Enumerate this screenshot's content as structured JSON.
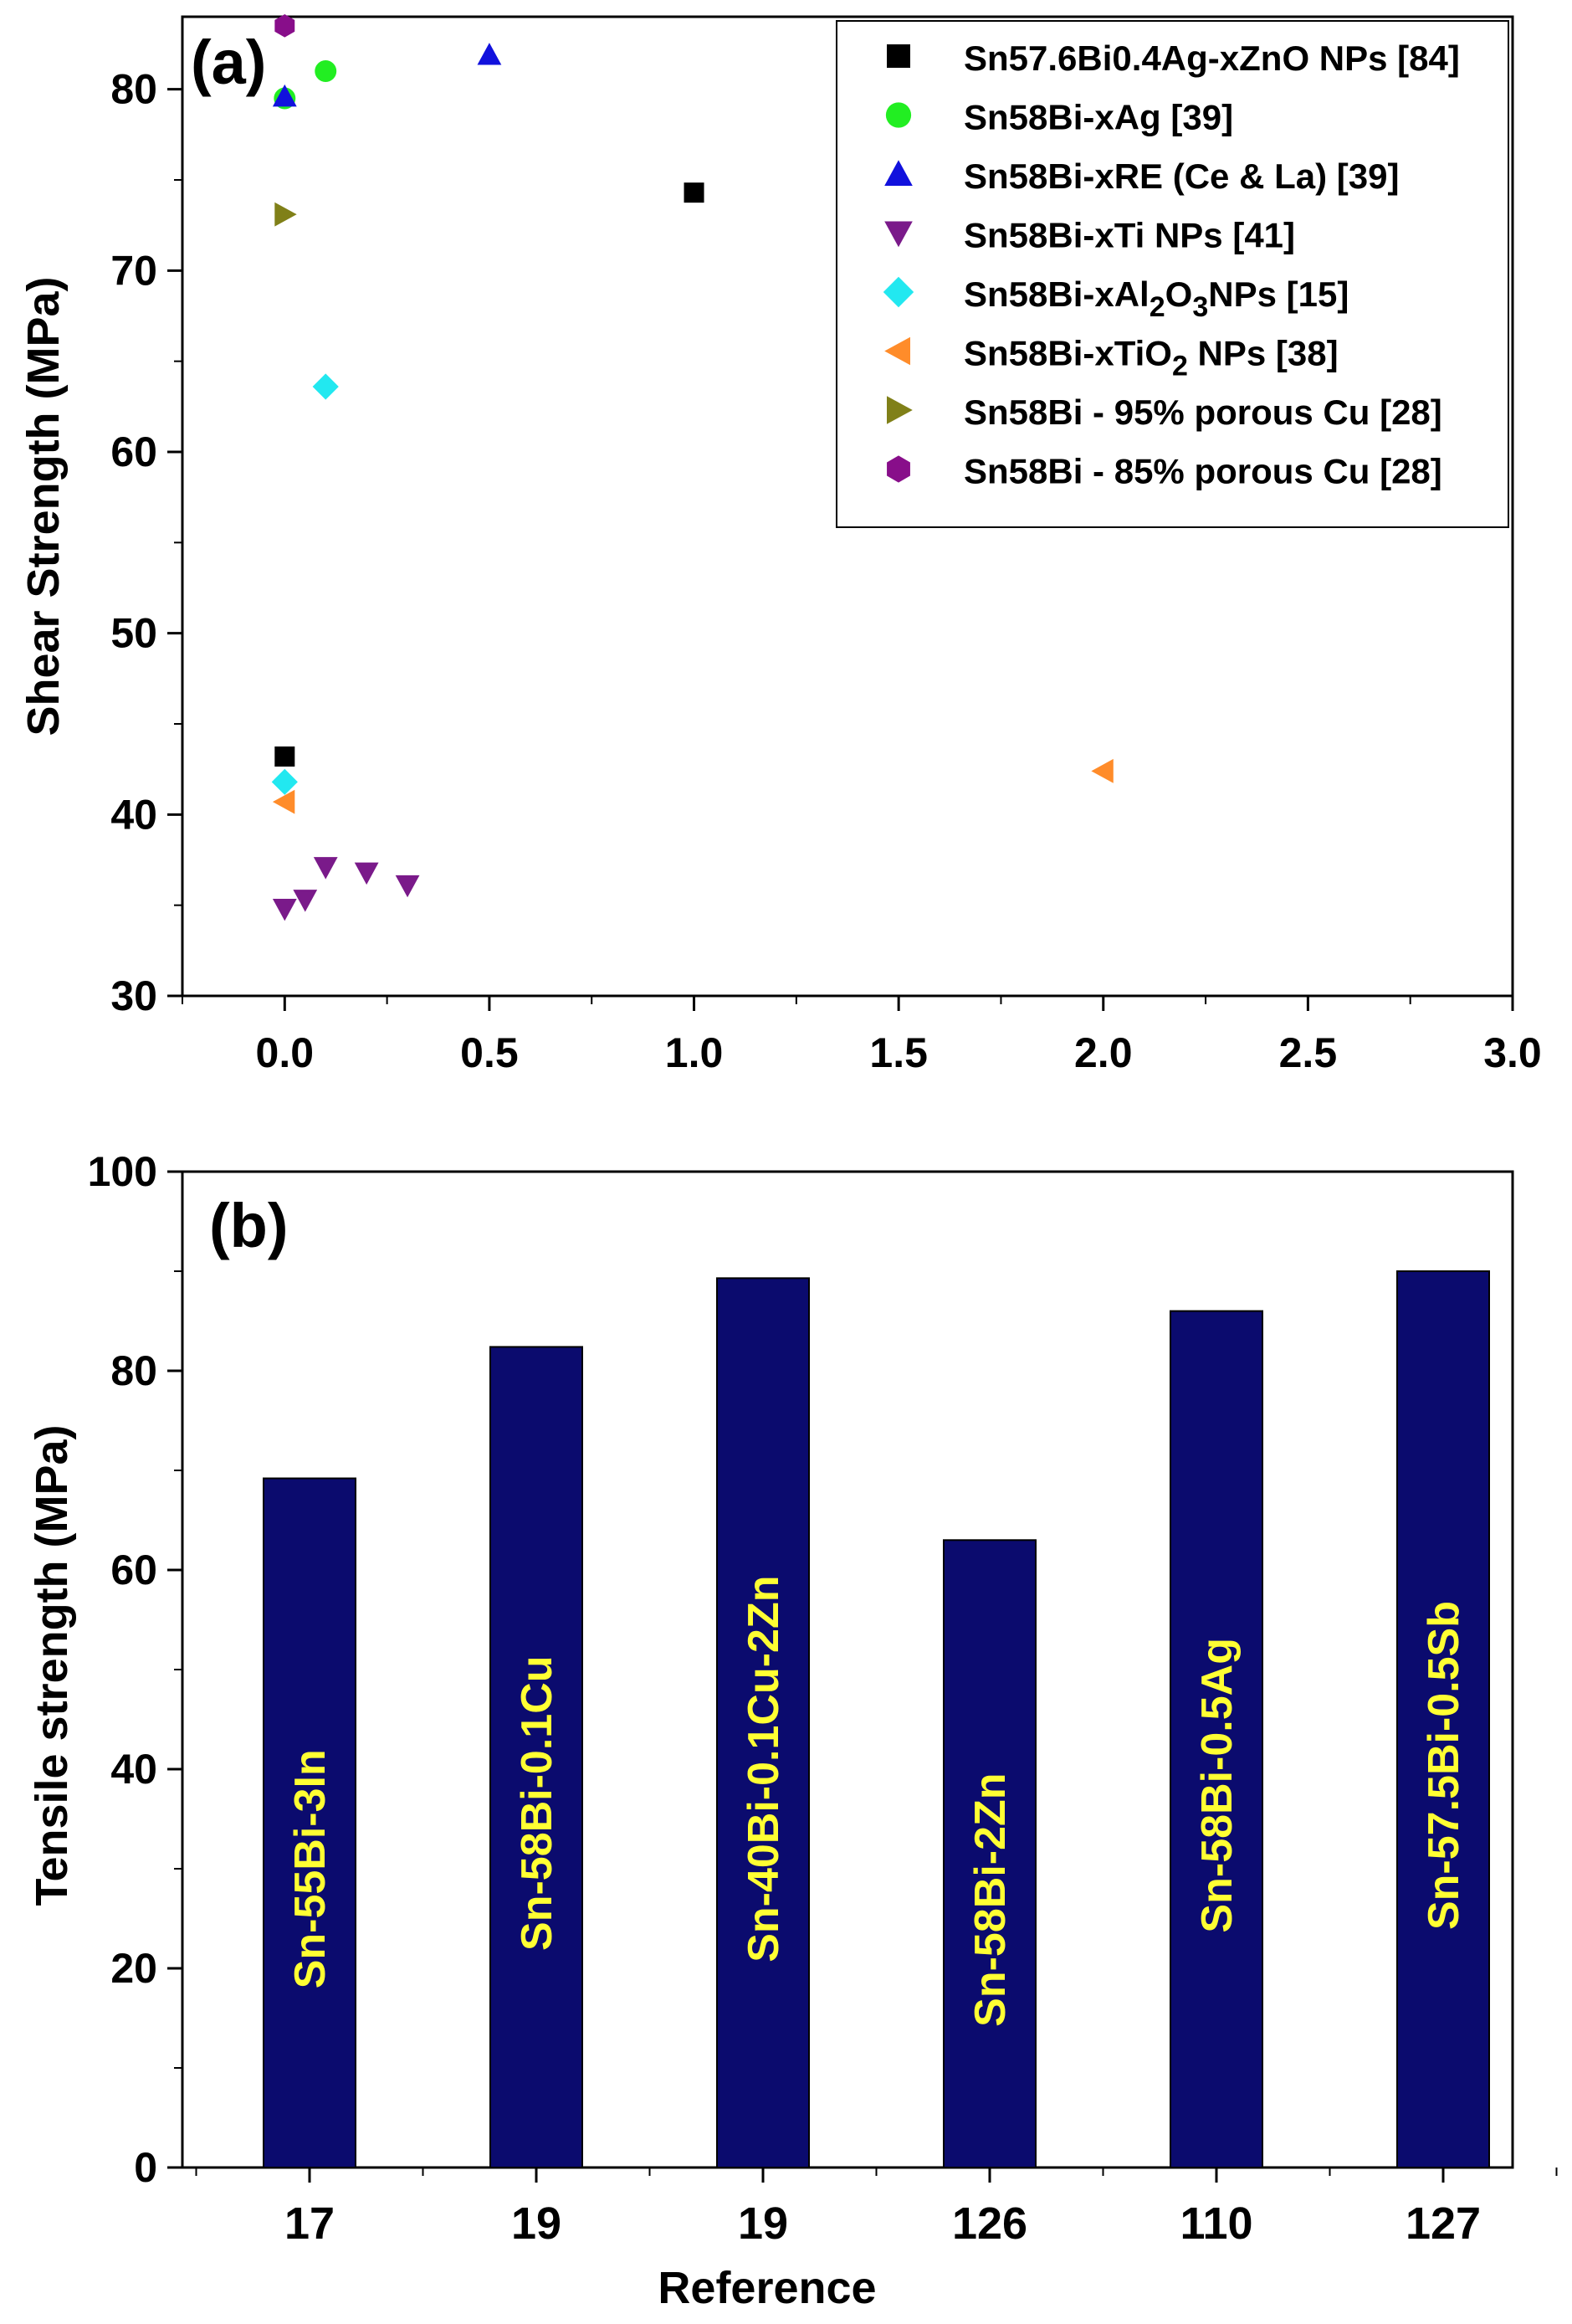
{
  "chart_data": [
    {
      "panel": "(a)",
      "type": "scatter",
      "xlabel": "",
      "ylabel": "Shear Strength (MPa)",
      "xlim": [
        -0.25,
        3.0
      ],
      "ylim": [
        30,
        84
      ],
      "xticks": [
        "0.0",
        "0.5",
        "1.0",
        "1.5",
        "2.0",
        "2.5",
        "3.0"
      ],
      "yticks": [
        "30",
        "40",
        "50",
        "60",
        "70",
        "80"
      ],
      "legend_position": "top-right",
      "series": [
        {
          "name": "Sn57.6Bi0.4Ag-xZnO NPs [84]",
          "marker": "square",
          "color": "#000000",
          "points": [
            [
              0,
              43.2
            ],
            [
              1.0,
              74.3
            ]
          ]
        },
        {
          "name": "Sn58Bi-xAg [39]",
          "marker": "circle",
          "color": "#22ee22",
          "points": [
            [
              0.1,
              81.0
            ],
            [
              0,
              79.5
            ]
          ]
        },
        {
          "name": "Sn58Bi-xRE (Ce & La) [39]",
          "marker": "triangle-up",
          "color": "#1111dd",
          "points": [
            [
              0,
              79.6
            ],
            [
              0.5,
              81.9
            ]
          ]
        },
        {
          "name": "Sn58Bi-xTi NPs [41]",
          "marker": "triangle-down",
          "color": "#7a1a8a",
          "points": [
            [
              0,
              34.8
            ],
            [
              0.05,
              35.3
            ],
            [
              0.1,
              37.1
            ],
            [
              0.2,
              36.8
            ],
            [
              0.3,
              36.1
            ]
          ]
        },
        {
          "name": "Sn58Bi-xAl2O3NPs [15]",
          "marker": "diamond",
          "color": "#22e8f0",
          "points": [
            [
              0,
              41.8
            ],
            [
              0.1,
              63.6
            ]
          ]
        },
        {
          "name": "Sn58Bi-xTiO2 NPs [38]",
          "marker": "triangle-left",
          "color": "#ff8c2a",
          "points": [
            [
              0,
              40.7
            ],
            [
              2.0,
              42.4
            ]
          ]
        },
        {
          "name": "Sn58Bi - 95% porous Cu [28]",
          "marker": "triangle-right",
          "color": "#808018",
          "points": [
            [
              0,
              73.1
            ]
          ]
        },
        {
          "name": "Sn58Bi - 85% porous Cu [28]",
          "marker": "hexagon",
          "color": "#880e8a",
          "points": [
            [
              0,
              83.5
            ]
          ]
        }
      ]
    },
    {
      "panel": "(b)",
      "type": "bar",
      "xlabel": "Reference",
      "ylabel": "Tensile strength (MPa)",
      "ylim": [
        0,
        100
      ],
      "yticks": [
        "0",
        "20",
        "40",
        "60",
        "80",
        "100"
      ],
      "categories": [
        "17",
        "19",
        "19",
        "126",
        "110",
        "127"
      ],
      "bar_labels": [
        "Sn-55Bi-3In",
        "Sn-58Bi-0.1Cu",
        "Sn-40Bi-0.1Cu-2Zn",
        "Sn-58Bi-2Zn",
        "Sn-58Bi-0.5Ag",
        "Sn-57.5Bi-0.5Sb"
      ],
      "values": [
        69.2,
        82.4,
        89.3,
        63.0,
        86.0,
        90.0
      ],
      "bar_color": "#0b0b6e",
      "label_color": "#ffff33"
    }
  ]
}
